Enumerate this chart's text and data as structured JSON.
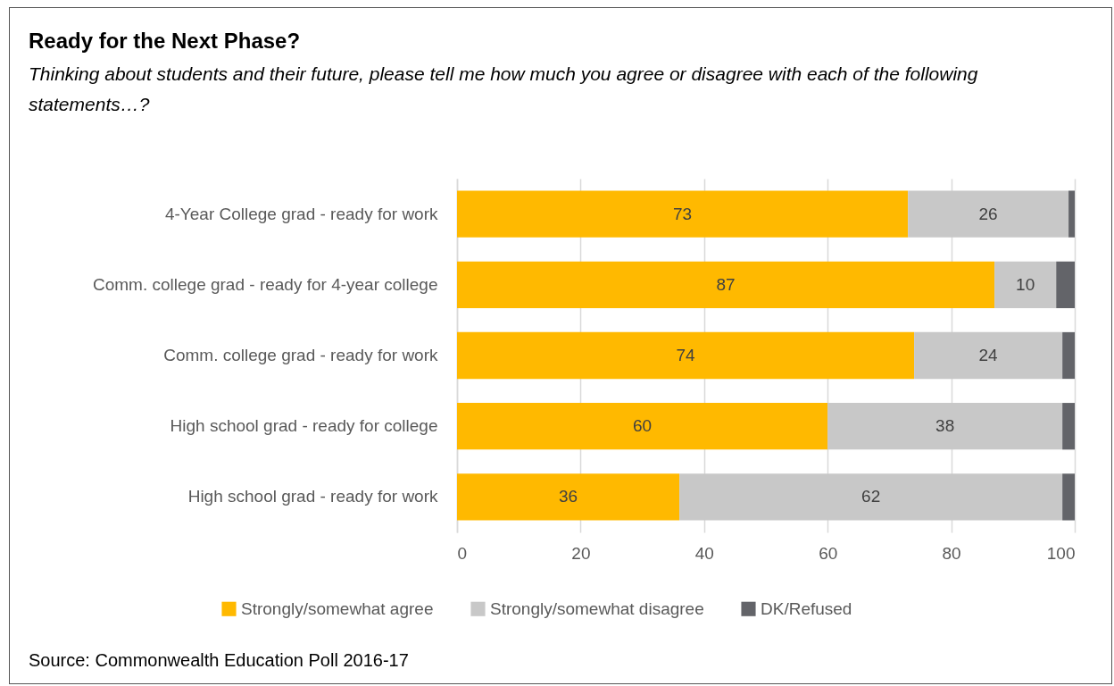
{
  "chart_data": {
    "type": "bar",
    "orientation": "horizontal",
    "stacked": true,
    "title": "Ready for the Next Phase?",
    "subtitle": "Thinking about students and their future, please tell me how much you agree or disagree with each of the following statements…?",
    "categories": [
      "4-Year College grad - ready for work",
      "Comm. college grad - ready for 4-year college",
      "Comm. college grad - ready for work",
      "High school grad - ready for college",
      "High school grad - ready for work"
    ],
    "series": [
      {
        "name": "Strongly/somewhat agree",
        "color": "#ffb900",
        "values": [
          73,
          87,
          74,
          60,
          36
        ],
        "value_labels": [
          "73",
          "87",
          "74",
          "60",
          "36"
        ]
      },
      {
        "name": "Strongly/somewhat disagree",
        "color": "#c8c8c8",
        "values": [
          26,
          10,
          24,
          38,
          62
        ],
        "value_labels": [
          "26",
          "10",
          "24",
          "38",
          "62"
        ]
      },
      {
        "name": "DK/Refused",
        "color": "#636469",
        "values": [
          1,
          3,
          2,
          2,
          2
        ],
        "value_labels": [
          null,
          null,
          null,
          null,
          null
        ]
      }
    ],
    "xlim": [
      0,
      100
    ],
    "xticks": [
      0,
      20,
      40,
      60,
      80,
      100
    ],
    "grid": "x",
    "legend": "bottom",
    "annotations": [
      "Source: Commonwealth Education Poll 2016-17"
    ]
  }
}
